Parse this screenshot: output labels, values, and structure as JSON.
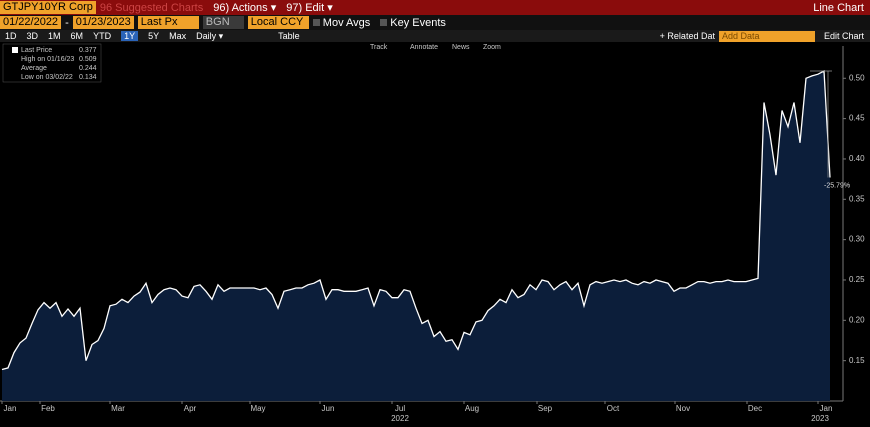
{
  "toolbar": {
    "security": "GTJPY10YR Corp",
    "suggested": "96 Suggested Charts",
    "actions": "96) Actions ▾",
    "edit": "97) Edit ▾",
    "chart_kind": "Line Chart",
    "start_date": "01/22/2022",
    "date_sep": "-",
    "end_date": "01/23/2023",
    "field": "Last Px",
    "source": "BGN",
    "currency": "Local CCY",
    "mov_avgs": "Mov Avgs",
    "key_events": "Key Events",
    "periods": [
      "1D",
      "3D",
      "1M",
      "6M",
      "YTD",
      "1Y",
      "5Y",
      "Max"
    ],
    "frequency": "Daily ▾",
    "table": "Table",
    "related": "+ Related Dat",
    "add_data": "Add Data",
    "edit_chart": "Edit Chart",
    "tools": [
      "Track",
      "Annotate",
      "News",
      "Zoom"
    ]
  },
  "chart_data": {
    "type": "line",
    "legend": [
      {
        "label": "Last Price",
        "value": 0.377
      },
      {
        "label": "High on 01/16/23",
        "value": 0.509
      },
      {
        "label": "Average",
        "value": 0.244
      },
      {
        "label": "Low on 03/02/22",
        "value": 0.134
      }
    ],
    "annotation": "-25.79%",
    "x_labels": [
      "Jan",
      "Feb",
      "Mar",
      "Apr",
      "May",
      "Jun",
      "Jul",
      "Aug",
      "Sep",
      "Oct",
      "Nov",
      "Dec",
      "Jan"
    ],
    "year_labels": [
      "2022",
      "2023"
    ],
    "ylim": [
      0.1,
      0.54
    ],
    "yticks": [
      0.15,
      {
        "value": 0.2,
        "label": "0.20"
      },
      0.25,
      {
        "value": 0.3,
        "label": "0.30"
      },
      0.35,
      {
        "value": 0.4,
        "label": "0.40"
      },
      0.45,
      {
        "value": 0.5,
        "label": "0.50"
      }
    ],
    "series": [
      {
        "name": "Last Price",
        "color": "#ffffff",
        "fill": "#0c1e3a",
        "values": [
          0.139,
          0.141,
          0.16,
          0.172,
          0.178,
          0.196,
          0.213,
          0.222,
          0.215,
          0.222,
          0.205,
          0.214,
          0.205,
          0.215,
          0.15,
          0.17,
          0.175,
          0.19,
          0.218,
          0.22,
          0.226,
          0.222,
          0.23,
          0.235,
          0.246,
          0.222,
          0.232,
          0.238,
          0.24,
          0.238,
          0.23,
          0.228,
          0.242,
          0.244,
          0.236,
          0.226,
          0.244,
          0.236,
          0.24,
          0.24,
          0.24,
          0.24,
          0.24,
          0.238,
          0.24,
          0.232,
          0.215,
          0.236,
          0.238,
          0.24,
          0.24,
          0.244,
          0.246,
          0.25,
          0.226,
          0.238,
          0.238,
          0.236,
          0.236,
          0.236,
          0.238,
          0.24,
          0.218,
          0.238,
          0.236,
          0.228,
          0.228,
          0.238,
          0.236,
          0.215,
          0.196,
          0.2,
          0.18,
          0.186,
          0.174,
          0.176,
          0.164,
          0.185,
          0.182,
          0.198,
          0.2,
          0.212,
          0.218,
          0.226,
          0.222,
          0.238,
          0.228,
          0.232,
          0.244,
          0.238,
          0.25,
          0.248,
          0.238,
          0.244,
          0.248,
          0.238,
          0.246,
          0.218,
          0.244,
          0.248,
          0.246,
          0.248,
          0.25,
          0.248,
          0.25,
          0.246,
          0.244,
          0.248,
          0.246,
          0.25,
          0.248,
          0.246,
          0.236,
          0.24,
          0.24,
          0.244,
          0.248,
          0.248,
          0.246,
          0.248,
          0.248,
          0.25,
          0.248,
          0.248,
          0.248,
          0.25,
          0.252,
          0.47,
          0.43,
          0.38,
          0.46,
          0.44,
          0.47,
          0.42,
          0.5,
          0.503,
          0.505,
          0.509,
          0.377
        ]
      }
    ]
  }
}
